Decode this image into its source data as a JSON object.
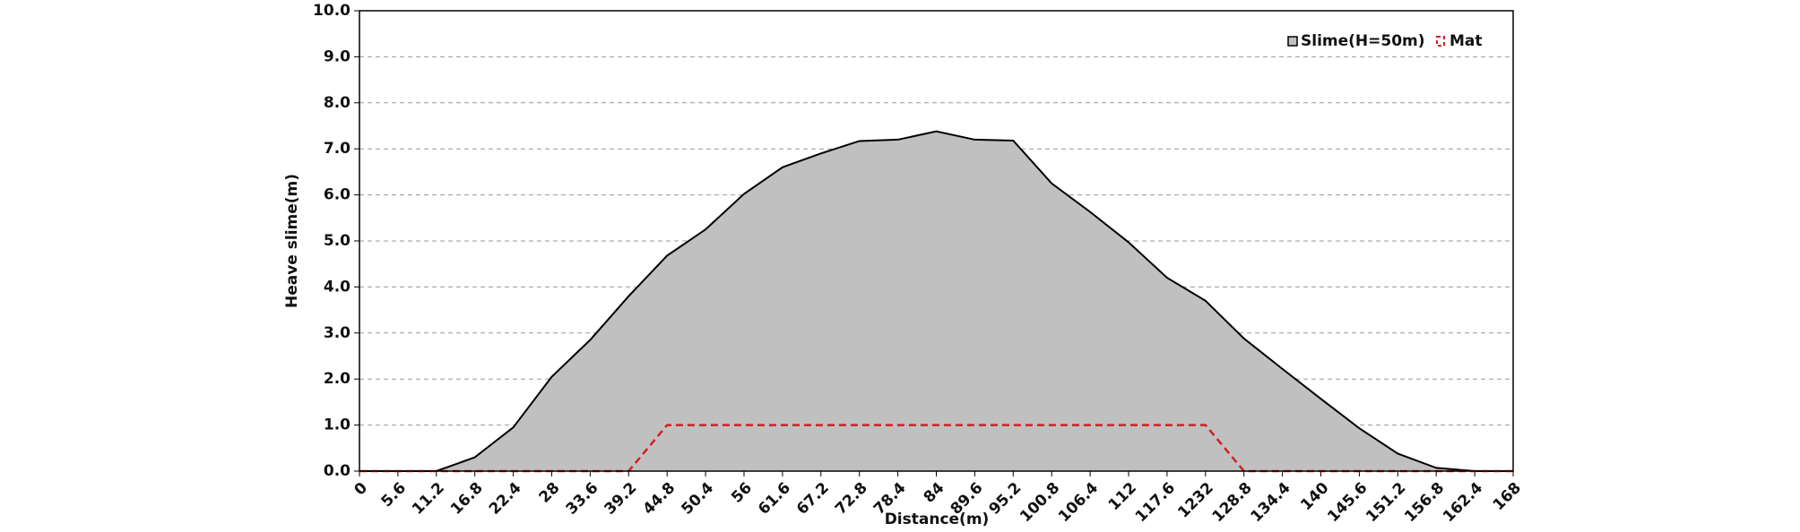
{
  "chart_data": {
    "type": "area",
    "x_label": "Distance(m)",
    "y_label": "Heave slime(m)",
    "categories": [
      "0",
      "5.6",
      "11.2",
      "16.8",
      "22.4",
      "28",
      "33.6",
      "39.2",
      "44.8",
      "50.4",
      "56",
      "61.6",
      "67.2",
      "72.8",
      "78.4",
      "84",
      "89.6",
      "95.2",
      "100.8",
      "106.4",
      "112",
      "117.6",
      "1232",
      "128.8",
      "134.4",
      "140",
      "145.6",
      "151.2",
      "156.8",
      "162.4",
      "168"
    ],
    "series": [
      {
        "name": "Slime(H=50m)",
        "color": "#c0c0c0",
        "values": [
          0,
          0,
          0,
          0.3,
          0.95,
          2.05,
          2.85,
          3.8,
          4.68,
          5.25,
          6.02,
          6.6,
          6.9,
          7.17,
          7.2,
          7.38,
          7.2,
          7.18,
          6.25,
          5.63,
          4.97,
          4.2,
          3.7,
          2.88,
          2.22,
          1.57,
          0.93,
          0.38,
          0.07,
          0,
          0
        ]
      },
      {
        "name": "Mat",
        "color": "#d02020",
        "values": [
          0,
          0,
          0,
          0,
          0,
          0,
          0,
          0,
          1,
          1,
          1,
          1,
          1,
          1,
          1,
          1,
          1,
          1,
          1,
          1,
          1,
          1,
          1,
          0,
          0,
          0,
          0,
          0,
          0,
          0,
          0
        ]
      }
    ],
    "ylim": [
      0,
      10
    ],
    "yticks": [
      {
        "value": 0,
        "label": "0.0"
      },
      {
        "value": 1,
        "label": "1.0"
      },
      {
        "value": 2,
        "label": "2.0"
      },
      {
        "value": 3,
        "label": "3.0"
      },
      {
        "value": 4,
        "label": "4.0"
      },
      {
        "value": 5,
        "label": "5.0"
      },
      {
        "value": 6,
        "label": "6.0"
      },
      {
        "value": 7,
        "label": "7.0"
      },
      {
        "value": 8,
        "label": "8.0"
      },
      {
        "value": 9,
        "label": "9.0"
      },
      {
        "value": 10,
        "label": "10.0"
      }
    ],
    "grid": true
  }
}
